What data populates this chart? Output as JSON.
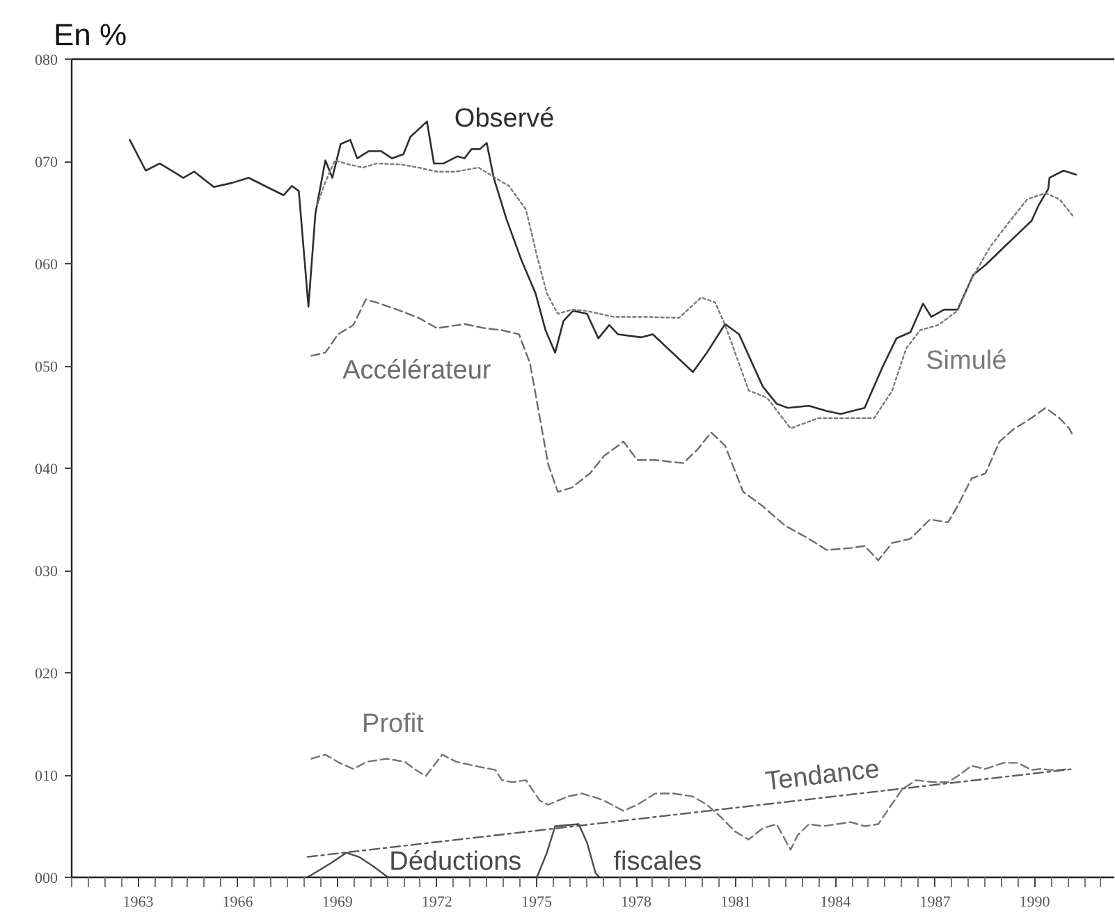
{
  "chart_data": {
    "type": "line",
    "ylabel": "En %",
    "xlim": [
      1961,
      1992.4
    ],
    "ylim": [
      0,
      80
    ],
    "xticks": [
      {
        "value": 1961,
        "label": null
      },
      {
        "value": 1961.5,
        "label": null
      },
      {
        "value": 1962,
        "label": null
      },
      {
        "value": 1962.5,
        "label": null
      },
      1963,
      {
        "value": 1963.5,
        "label": null
      },
      {
        "value": 1964,
        "label": null
      },
      {
        "value": 1964.5,
        "label": null
      },
      {
        "value": 1965,
        "label": null
      },
      {
        "value": 1965.5,
        "label": null
      },
      1966,
      {
        "value": 1966.5,
        "label": null
      },
      {
        "value": 1967,
        "label": null
      },
      {
        "value": 1967.5,
        "label": null
      },
      {
        "value": 1968,
        "label": null
      },
      {
        "value": 1968.5,
        "label": null
      },
      1969,
      {
        "value": 1969.5,
        "label": null
      },
      {
        "value": 1970,
        "label": null
      },
      {
        "value": 1970.5,
        "label": null
      },
      {
        "value": 1971,
        "label": null
      },
      {
        "value": 1971.5,
        "label": null
      },
      1972,
      {
        "value": 1972.5,
        "label": null
      },
      {
        "value": 1973,
        "label": null
      },
      {
        "value": 1973.5,
        "label": null
      },
      {
        "value": 1974,
        "label": null
      },
      {
        "value": 1974.5,
        "label": null
      },
      1975,
      {
        "value": 1975.5,
        "label": null
      },
      {
        "value": 1976,
        "label": null
      },
      {
        "value": 1976.5,
        "label": null
      },
      {
        "value": 1977,
        "label": null
      },
      {
        "value": 1977.5,
        "label": null
      },
      1978,
      {
        "value": 1978.5,
        "label": null
      },
      {
        "value": 1979,
        "label": null
      },
      {
        "value": 1979.5,
        "label": null
      },
      {
        "value": 1980,
        "label": null
      },
      {
        "value": 1980.5,
        "label": null
      },
      1981,
      {
        "value": 1981.5,
        "label": null
      },
      {
        "value": 1982,
        "label": null
      },
      {
        "value": 1982.5,
        "label": null
      },
      {
        "value": 1983,
        "label": null
      },
      {
        "value": 1983.5,
        "label": null
      },
      1984,
      {
        "value": 1984.5,
        "label": null
      },
      {
        "value": 1985,
        "label": null
      },
      {
        "value": 1985.5,
        "label": null
      },
      {
        "value": 1986,
        "label": null
      },
      {
        "value": 1986.5,
        "label": null
      },
      1987,
      {
        "value": 1987.5,
        "label": null
      },
      {
        "value": 1988,
        "label": null
      },
      {
        "value": 1988.5,
        "label": null
      },
      {
        "value": 1989,
        "label": null
      },
      {
        "value": 1989.5,
        "label": null
      },
      1990,
      {
        "value": 1990.5,
        "label": null
      },
      {
        "value": 1991,
        "label": null
      },
      {
        "value": 1991.5,
        "label": null
      },
      {
        "value": 1992,
        "label": null
      }
    ],
    "yticks": [
      {
        "value": 0,
        "label": "000"
      },
      {
        "value": 10,
        "label": "010"
      },
      {
        "value": 20,
        "label": "020"
      },
      {
        "value": 30,
        "label": "030"
      },
      {
        "value": 40,
        "label": "040"
      },
      {
        "value": 50,
        "label": "050"
      },
      {
        "value": 60,
        "label": "060"
      },
      {
        "value": 70,
        "label": "070"
      },
      {
        "value": 80,
        "label": "080"
      }
    ],
    "series": [
      {
        "name": "Observé",
        "color": "#2e2e2e",
        "line_style": "solid",
        "x": [
          1962.75,
          1963.23,
          1963.65,
          1964.36,
          1964.69,
          1965.28,
          1965.83,
          1966.33,
          1966.88,
          1967.38,
          1967.63,
          1967.84,
          1968.13,
          1968.34,
          1968.64,
          1968.85,
          1969.1,
          1969.39,
          1969.6,
          1969.94,
          1970.32,
          1970.65,
          1970.99,
          1971.2,
          1971.7,
          1971.91,
          1972.2,
          1972.62,
          1972.83,
          1973.04,
          1973.29,
          1973.5,
          1973.71,
          1974.09,
          1974.55,
          1974.97,
          1975.27,
          1975.56,
          1975.81,
          1976.1,
          1976.52,
          1976.86,
          1977.19,
          1977.45,
          1978.16,
          1978.5,
          1979.71,
          1980.13,
          1980.68,
          1981.1,
          1981.81,
          1982.23,
          1982.57,
          1983.2,
          1983.74,
          1984.16,
          1984.88,
          1985.42,
          1985.84,
          1986.26,
          1986.64,
          1986.89,
          1987.27,
          1987.68,
          1988.15,
          1988.53,
          1989.07,
          1989.49,
          1989.91,
          1990.12,
          1990.41,
          1990.45,
          1990.87,
          1991.25
        ],
        "values": [
          72.1,
          69.1,
          69.8,
          68.4,
          69.0,
          67.5,
          67.9,
          68.4,
          67.5,
          66.7,
          67.6,
          67.1,
          55.8,
          64.9,
          70.1,
          68.4,
          71.7,
          72.1,
          70.3,
          71.0,
          71.0,
          70.3,
          70.7,
          72.4,
          73.9,
          69.8,
          69.8,
          70.5,
          70.3,
          71.2,
          71.2,
          71.8,
          68.4,
          64.4,
          60.3,
          57.1,
          53.5,
          51.3,
          54.4,
          55.4,
          55.1,
          52.7,
          54.0,
          53.1,
          52.8,
          53.1,
          49.4,
          51.3,
          54.1,
          53.1,
          48.0,
          46.3,
          45.9,
          46.1,
          45.6,
          45.3,
          45.9,
          49.9,
          52.7,
          53.3,
          56.1,
          54.8,
          55.5,
          55.5,
          58.9,
          59.9,
          61.6,
          62.9,
          64.2,
          65.7,
          67.3,
          68.4,
          69.1,
          68.7
        ]
      },
      {
        "name": "Simulé",
        "color": "#7a7a7a",
        "line_style": "dotted",
        "x": [
          1968.39,
          1968.64,
          1968.93,
          1969.35,
          1969.77,
          1970.19,
          1970.9,
          1971.45,
          1972.0,
          1972.58,
          1973.25,
          1973.76,
          1974.17,
          1974.68,
          1975.01,
          1975.31,
          1975.64,
          1976.06,
          1976.48,
          1977.32,
          1978.28,
          1979.29,
          1979.96,
          1980.38,
          1980.68,
          1981.39,
          1981.94,
          1982.65,
          1983.49,
          1984.33,
          1985.17,
          1985.71,
          1986.13,
          1986.55,
          1987.1,
          1987.68,
          1988.1,
          1988.65,
          1989.19,
          1989.78,
          1990.33,
          1990.75,
          1991.17
        ],
        "values": [
          65.7,
          68.0,
          70.1,
          69.7,
          69.4,
          69.8,
          69.7,
          69.4,
          69.0,
          69.0,
          69.4,
          68.4,
          67.6,
          65.3,
          60.8,
          57.1,
          55.1,
          55.5,
          55.4,
          54.8,
          54.8,
          54.7,
          56.7,
          56.2,
          54.0,
          47.6,
          46.9,
          43.9,
          44.9,
          44.9,
          44.9,
          47.6,
          51.7,
          53.5,
          54.0,
          55.4,
          58.5,
          61.6,
          63.9,
          66.3,
          66.9,
          66.3,
          64.6
        ]
      },
      {
        "name": "Accélérateur",
        "color": "#6c6c6c",
        "line_style": "dashed",
        "x": [
          1968.22,
          1968.64,
          1969.02,
          1969.48,
          1969.86,
          1970.19,
          1970.9,
          1971.45,
          1972.0,
          1972.83,
          1973.42,
          1973.96,
          1974.47,
          1974.8,
          1975.1,
          1975.35,
          1975.64,
          1976.06,
          1976.61,
          1977.03,
          1977.62,
          1978.03,
          1978.58,
          1979.42,
          1979.84,
          1980.26,
          1980.68,
          1981.22,
          1981.81,
          1982.48,
          1983.2,
          1983.74,
          1984.46,
          1984.88,
          1985.29,
          1985.71,
          1986.26,
          1986.85,
          1987.39,
          1987.68,
          1988.1,
          1988.52,
          1988.94,
          1989.36,
          1989.9,
          1990.33,
          1990.75,
          1991.04,
          1991.17
        ],
        "values": [
          51.0,
          51.3,
          53.1,
          54.0,
          56.5,
          56.2,
          55.4,
          54.7,
          53.7,
          54.1,
          53.7,
          53.5,
          53.1,
          50.3,
          44.9,
          40.4,
          37.7,
          38.1,
          39.5,
          41.2,
          42.6,
          40.8,
          40.8,
          40.5,
          41.8,
          43.5,
          42.2,
          37.7,
          36.3,
          34.4,
          33.1,
          32.0,
          32.2,
          32.4,
          31.0,
          32.7,
          33.1,
          35.0,
          34.7,
          36.3,
          39.0,
          39.5,
          42.6,
          43.8,
          44.9,
          45.9,
          44.9,
          43.9,
          43.1
        ]
      },
      {
        "name": "Profit",
        "color": "#747474",
        "line_style": "dashed",
        "x": [
          1968.22,
          1968.64,
          1969.06,
          1969.48,
          1969.9,
          1970.48,
          1971.03,
          1971.32,
          1971.66,
          1972.16,
          1972.58,
          1973.13,
          1973.76,
          1973.96,
          1974.26,
          1974.68,
          1975.1,
          1975.35,
          1975.94,
          1976.36,
          1976.78,
          1977.03,
          1977.62,
          1978.03,
          1978.58,
          1979.13,
          1979.71,
          1980.13,
          1980.55,
          1980.97,
          1981.39,
          1981.81,
          1982.23,
          1982.65,
          1982.86,
          1983.2,
          1983.62,
          1984.04,
          1984.46,
          1984.88,
          1985.29,
          1985.71,
          1986.01,
          1986.43,
          1986.97,
          1987.39,
          1987.68,
          1988.1,
          1988.52,
          1989.07,
          1989.49,
          1989.91,
          1990.2,
          1990.45,
          1990.75,
          1991.04
        ],
        "values": [
          11.6,
          12.0,
          11.2,
          10.6,
          11.3,
          11.6,
          11.3,
          10.6,
          9.9,
          12.0,
          11.3,
          10.9,
          10.5,
          9.5,
          9.3,
          9.5,
          7.5,
          7.1,
          7.9,
          8.2,
          7.8,
          7.5,
          6.5,
          7.1,
          8.2,
          8.2,
          7.9,
          7.1,
          5.9,
          4.5,
          3.7,
          4.8,
          5.2,
          2.7,
          4.1,
          5.2,
          5.0,
          5.2,
          5.4,
          5.0,
          5.2,
          7.2,
          8.6,
          9.5,
          9.3,
          9.3,
          9.9,
          10.9,
          10.6,
          11.2,
          11.2,
          10.5,
          10.6,
          10.5,
          10.5,
          10.6
        ]
      },
      {
        "name": "Tendance",
        "color": "#5c5c5c",
        "line_style": "dashdot",
        "x": [
          1968.1,
          1991.17
        ],
        "values": [
          2.0,
          10.6
        ]
      },
      {
        "name": "Déductions fiscales",
        "color": "#4a4a4a",
        "line_style": "solid",
        "x": [
          1968.1,
          1968.81,
          1969.27,
          1969.65,
          1970.07,
          1970.53,
          1975.01,
          1975.31,
          1975.56,
          1976.27,
          1976.52,
          1976.78,
          1976.9
        ],
        "values": [
          0,
          1.4,
          2.4,
          2.0,
          1.1,
          0,
          0,
          2.4,
          5.0,
          5.2,
          3.4,
          0.4,
          0
        ]
      }
    ]
  }
}
